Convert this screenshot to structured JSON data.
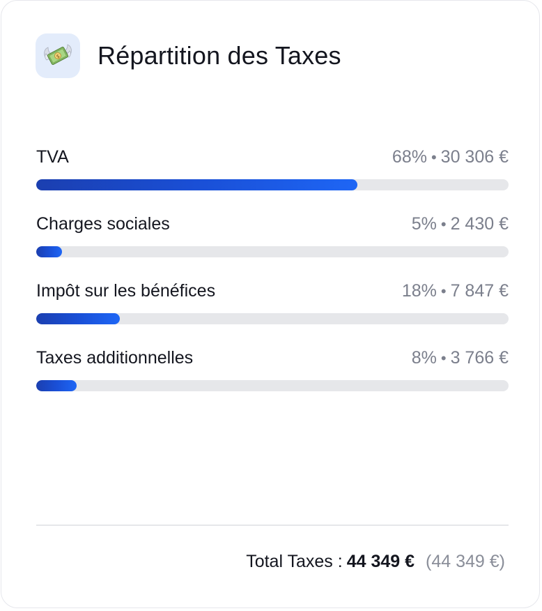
{
  "card": {
    "title": "Répartition des Taxes",
    "icon": "money-with-wings-icon"
  },
  "taxes": [
    {
      "label": "TVA",
      "percent": "68%",
      "amount": "30 306 €",
      "fill": 0.68
    },
    {
      "label": "Charges sociales",
      "percent": "5%",
      "amount": "2 430 €",
      "fill": 0.055
    },
    {
      "label": "Impôt sur les bénéfices",
      "percent": "18%",
      "amount": "7 847 €",
      "fill": 0.177
    },
    {
      "label": "Taxes additionnelles",
      "percent": "8%",
      "amount": "3 766 €",
      "fill": 0.085
    }
  ],
  "separator": "•",
  "footer": {
    "label": "Total Taxes :",
    "amount": "44 349 €",
    "secondary": "(44 349 €)"
  },
  "colors": {
    "accent": "#1a4fd6",
    "track": "#e6e7ea",
    "icon_bg": "#e3ecfb",
    "muted_text": "#7b7f8c"
  }
}
